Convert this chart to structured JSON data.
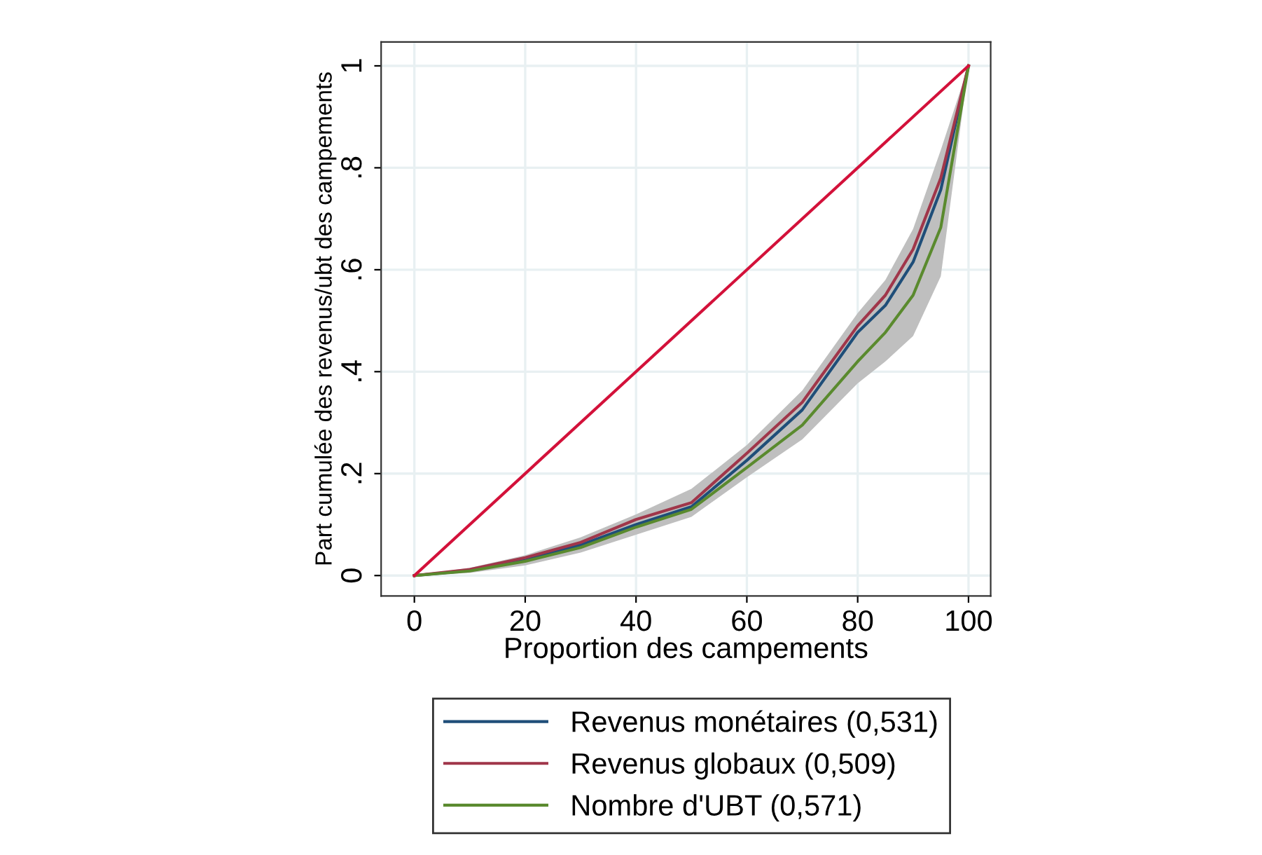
{
  "chart_data": {
    "type": "line",
    "xlabel": "Proportion des campements",
    "ylabel": "Part cumulée des revenus/ubt des campements",
    "xlim": [
      -6,
      104
    ],
    "xticks": [
      0,
      20,
      40,
      60,
      80,
      100
    ],
    "ylim": [
      -0.04,
      1.047
    ],
    "yticks": [
      0,
      {
        "value": 0.2,
        "label": ".2"
      },
      {
        "value": 0.4,
        "label": ".4"
      },
      {
        "value": 0.6,
        "label": ".6"
      },
      {
        "value": 0.8,
        "label": ".8"
      },
      1
    ],
    "x": [
      0,
      10,
      20,
      30,
      40,
      50,
      60,
      70,
      80,
      85,
      90,
      95,
      100
    ],
    "grid": true,
    "legend": "bottom",
    "series": [
      {
        "name": "Revenus monétaires (0,531)",
        "color": "#1f4e79",
        "values": [
          0,
          0.01,
          0.03,
          0.06,
          0.1,
          0.135,
          0.226,
          0.325,
          0.477,
          0.53,
          0.615,
          0.757,
          1
        ],
        "lower": [
          0,
          0.005,
          0.02,
          0.045,
          0.08,
          0.115,
          0.193,
          0.267,
          0.377,
          0.42,
          0.47,
          0.587,
          1
        ],
        "upper": [
          0,
          0.015,
          0.04,
          0.075,
          0.12,
          0.17,
          0.256,
          0.363,
          0.515,
          0.58,
          0.68,
          0.835,
          1
        ]
      },
      {
        "name": "Revenus globaux (0,509)",
        "color": "#a0364a",
        "values": [
          0,
          0.012,
          0.035,
          0.065,
          0.11,
          0.143,
          0.24,
          0.34,
          0.49,
          0.55,
          0.64,
          0.78,
          1
        ]
      },
      {
        "name": "Nombre d'UBT (0,571)",
        "color": "#5a8a2e",
        "values": [
          0,
          0.009,
          0.028,
          0.055,
          0.095,
          0.13,
          0.212,
          0.295,
          0.42,
          0.477,
          0.55,
          0.683,
          1
        ]
      },
      {
        "color": "#d3113a",
        "x": [
          0,
          100
        ],
        "values": [
          0,
          1
        ]
      }
    ]
  }
}
